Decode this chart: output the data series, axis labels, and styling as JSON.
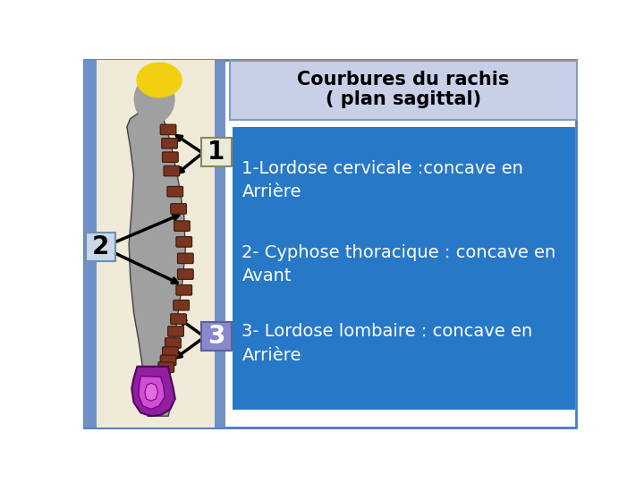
{
  "title_line1": "Courbures du rachis",
  "title_line2": "( plan sagittal)",
  "title_box_color": "#c8d0e8",
  "title_text_color": "#000000",
  "blue_box_color": "#2878c8",
  "blue_box_text_color": "#ffffff",
  "label1_box_color": "#e8ecd8",
  "label1_text_color": "#000000",
  "label1": "1",
  "label3_box_color": "#8888cc",
  "label3_text_color": "#ffffff",
  "label3": "3",
  "label2_text": "2",
  "label2_text_color": "#000000",
  "text1": "1-Lordose cervicale :concave en\nArrière",
  "text2": "2- Cyphose thoracique : concave en\nAvant",
  "text3": "3- Lordose lombaire : concave en\nArrière",
  "bg_color": "#ffffff",
  "border_color": "#4a7abf",
  "slide_bg": "#f0ead8",
  "arrow_color": "#000000",
  "body_color": "#a0a0a0",
  "spine_color": "#7a3520",
  "pelvis_color": "#9020a0",
  "pelvis2_color": "#d050d0",
  "hair_color": "#f0d010"
}
